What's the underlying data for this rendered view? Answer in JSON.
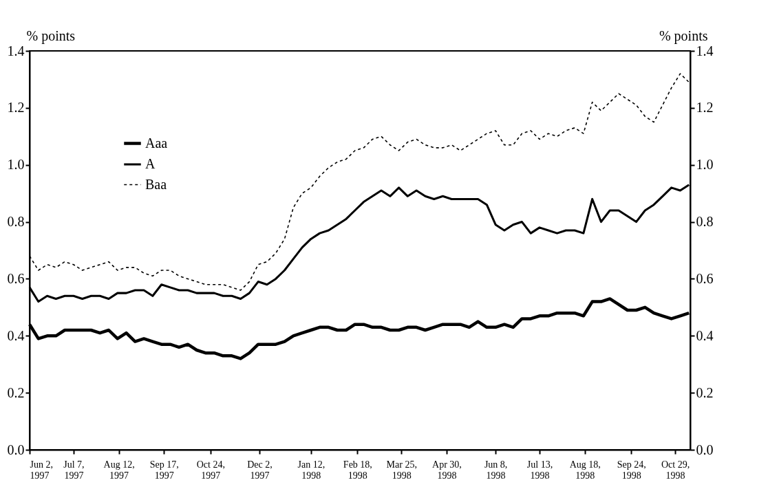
{
  "chart_data": {
    "type": "line",
    "ylabel": "% points",
    "y2label": "% points",
    "x": [
      "1997-06-02",
      "1997-06-09",
      "1997-06-16",
      "1997-06-23",
      "1997-06-30",
      "1997-07-07",
      "1997-07-14",
      "1997-07-21",
      "1997-07-28",
      "1997-08-04",
      "1997-08-11",
      "1997-08-18",
      "1997-08-25",
      "1997-09-01",
      "1997-09-08",
      "1997-09-15",
      "1997-09-22",
      "1997-09-29",
      "1997-10-06",
      "1997-10-13",
      "1997-10-20",
      "1997-10-27",
      "1997-11-03",
      "1997-11-10",
      "1997-11-17",
      "1997-11-24",
      "1997-12-01",
      "1997-12-08",
      "1997-12-15",
      "1997-12-22",
      "1997-12-29",
      "1998-01-05",
      "1998-01-12",
      "1998-01-19",
      "1998-01-26",
      "1998-02-02",
      "1998-02-09",
      "1998-02-16",
      "1998-02-23",
      "1998-03-02",
      "1998-03-09",
      "1998-03-16",
      "1998-03-23",
      "1998-03-30",
      "1998-04-06",
      "1998-04-13",
      "1998-04-20",
      "1998-04-27",
      "1998-05-04",
      "1998-05-11",
      "1998-05-18",
      "1998-05-25",
      "1998-06-01",
      "1998-06-08",
      "1998-06-15",
      "1998-06-22",
      "1998-06-29",
      "1998-07-06",
      "1998-07-13",
      "1998-07-20",
      "1998-07-27",
      "1998-08-03",
      "1998-08-10",
      "1998-08-17",
      "1998-08-24",
      "1998-08-31",
      "1998-09-07",
      "1998-09-14",
      "1998-09-21",
      "1998-09-28",
      "1998-10-05",
      "1998-10-12",
      "1998-10-19",
      "1998-10-26",
      "1998-11-02",
      "1998-11-09"
    ],
    "series": [
      {
        "name": "Aaa",
        "color": "#000000",
        "line_style": "solid",
        "values": [
          0.44,
          0.39,
          0.4,
          0.4,
          0.42,
          0.42,
          0.42,
          0.42,
          0.41,
          0.42,
          0.39,
          0.41,
          0.38,
          0.39,
          0.38,
          0.37,
          0.37,
          0.36,
          0.37,
          0.35,
          0.34,
          0.34,
          0.33,
          0.33,
          0.32,
          0.34,
          0.37,
          0.37,
          0.37,
          0.38,
          0.4,
          0.41,
          0.42,
          0.43,
          0.43,
          0.42,
          0.42,
          0.44,
          0.44,
          0.43,
          0.43,
          0.42,
          0.42,
          0.43,
          0.43,
          0.42,
          0.43,
          0.44,
          0.44,
          0.44,
          0.43,
          0.45,
          0.43,
          0.43,
          0.44,
          0.43,
          0.46,
          0.46,
          0.47,
          0.47,
          0.48,
          0.48,
          0.48,
          0.47,
          0.52,
          0.52,
          0.53,
          0.51,
          0.49,
          0.49,
          0.5,
          0.48,
          0.47,
          0.46,
          0.47,
          0.48
        ]
      },
      {
        "name": "A",
        "color": "#000000",
        "line_style": "solid",
        "values": [
          0.57,
          0.52,
          0.54,
          0.53,
          0.54,
          0.54,
          0.53,
          0.54,
          0.54,
          0.53,
          0.55,
          0.55,
          0.56,
          0.56,
          0.54,
          0.58,
          0.57,
          0.56,
          0.56,
          0.55,
          0.55,
          0.55,
          0.54,
          0.54,
          0.53,
          0.55,
          0.59,
          0.58,
          0.6,
          0.63,
          0.67,
          0.71,
          0.74,
          0.76,
          0.77,
          0.79,
          0.81,
          0.84,
          0.87,
          0.89,
          0.91,
          0.89,
          0.92,
          0.89,
          0.91,
          0.89,
          0.88,
          0.89,
          0.88,
          0.88,
          0.88,
          0.88,
          0.86,
          0.79,
          0.77,
          0.79,
          0.8,
          0.76,
          0.78,
          0.77,
          0.76,
          0.77,
          0.77,
          0.76,
          0.88,
          0.8,
          0.84,
          0.84,
          0.82,
          0.8,
          0.84,
          0.86,
          0.89,
          0.92,
          0.91,
          0.93
        ]
      },
      {
        "name": "Baa",
        "color": "#000000",
        "line_style": "dashed",
        "values": [
          0.68,
          0.63,
          0.65,
          0.64,
          0.66,
          0.65,
          0.63,
          0.64,
          0.65,
          0.66,
          0.63,
          0.64,
          0.64,
          0.62,
          0.61,
          0.63,
          0.63,
          0.61,
          0.6,
          0.59,
          0.58,
          0.58,
          0.58,
          0.57,
          0.56,
          0.59,
          0.65,
          0.66,
          0.69,
          0.74,
          0.85,
          0.9,
          0.92,
          0.96,
          0.99,
          1.01,
          1.02,
          1.05,
          1.06,
          1.09,
          1.1,
          1.07,
          1.05,
          1.08,
          1.09,
          1.07,
          1.06,
          1.06,
          1.07,
          1.05,
          1.07,
          1.09,
          1.11,
          1.12,
          1.07,
          1.07,
          1.11,
          1.12,
          1.09,
          1.11,
          1.1,
          1.12,
          1.13,
          1.11,
          1.22,
          1.19,
          1.22,
          1.25,
          1.23,
          1.21,
          1.17,
          1.15,
          1.21,
          1.27,
          1.32,
          1.29
        ]
      }
    ],
    "xlim": [
      "1997-06-02",
      "1998-11-10"
    ],
    "xticks": [
      {
        "value": "1997-06-02",
        "label": "Jun 2, 1997"
      },
      {
        "value": "1997-07-07",
        "label": "Jul 7, 1997"
      },
      {
        "value": "1997-08-12",
        "label": "Aug 12, 1997"
      },
      {
        "value": "1997-09-17",
        "label": "Sep 17, 1997"
      },
      {
        "value": "1997-10-24",
        "label": "Oct 24, 1997"
      },
      {
        "value": "1997-12-02",
        "label": "Dec 2, 1997"
      },
      {
        "value": "1998-01-12",
        "label": "Jan 12, 1998"
      },
      {
        "value": "1998-02-18",
        "label": "Feb 18, 1998"
      },
      {
        "value": "1998-03-25",
        "label": "Mar 25, 1998"
      },
      {
        "value": "1998-04-30",
        "label": "Apr 30, 1998"
      },
      {
        "value": "1998-06-08",
        "label": "Jun 8, 1998"
      },
      {
        "value": "1998-07-13",
        "label": "Jul 13, 1998"
      },
      {
        "value": "1998-08-18",
        "label": "Aug 18, 1998"
      },
      {
        "value": "1998-09-24",
        "label": "Sep 24, 1998"
      },
      {
        "value": "1998-10-29",
        "label": "Oct 29, 1998"
      }
    ],
    "ylim": [
      0,
      1.4
    ],
    "yticks": [
      {
        "value": 0,
        "label": "0.0"
      },
      {
        "value": 0.2,
        "label": "0.2"
      },
      {
        "value": 0.4,
        "label": "0.4"
      },
      {
        "value": 0.6,
        "label": "0.6"
      },
      {
        "value": 0.8,
        "label": "0.8"
      },
      {
        "value": 1.0,
        "label": "1.0"
      },
      {
        "value": 1.2,
        "label": "1.2"
      },
      {
        "value": 1.4,
        "label": "1.4"
      }
    ],
    "y2lim": [
      0,
      1.4
    ],
    "y2ticks": [
      {
        "value": 0,
        "label": "0.0"
      },
      {
        "value": 0.2,
        "label": "0.2"
      },
      {
        "value": 0.4,
        "label": "0.4"
      },
      {
        "value": 0.6,
        "label": "0.6"
      },
      {
        "value": 0.8,
        "label": "0.8"
      },
      {
        "value": 1.0,
        "label": "1.0"
      },
      {
        "value": 1.2,
        "label": "1.2"
      },
      {
        "value": 1.4,
        "label": "1.4"
      }
    ],
    "grid": false,
    "legend": "top left",
    "marker": "none"
  }
}
